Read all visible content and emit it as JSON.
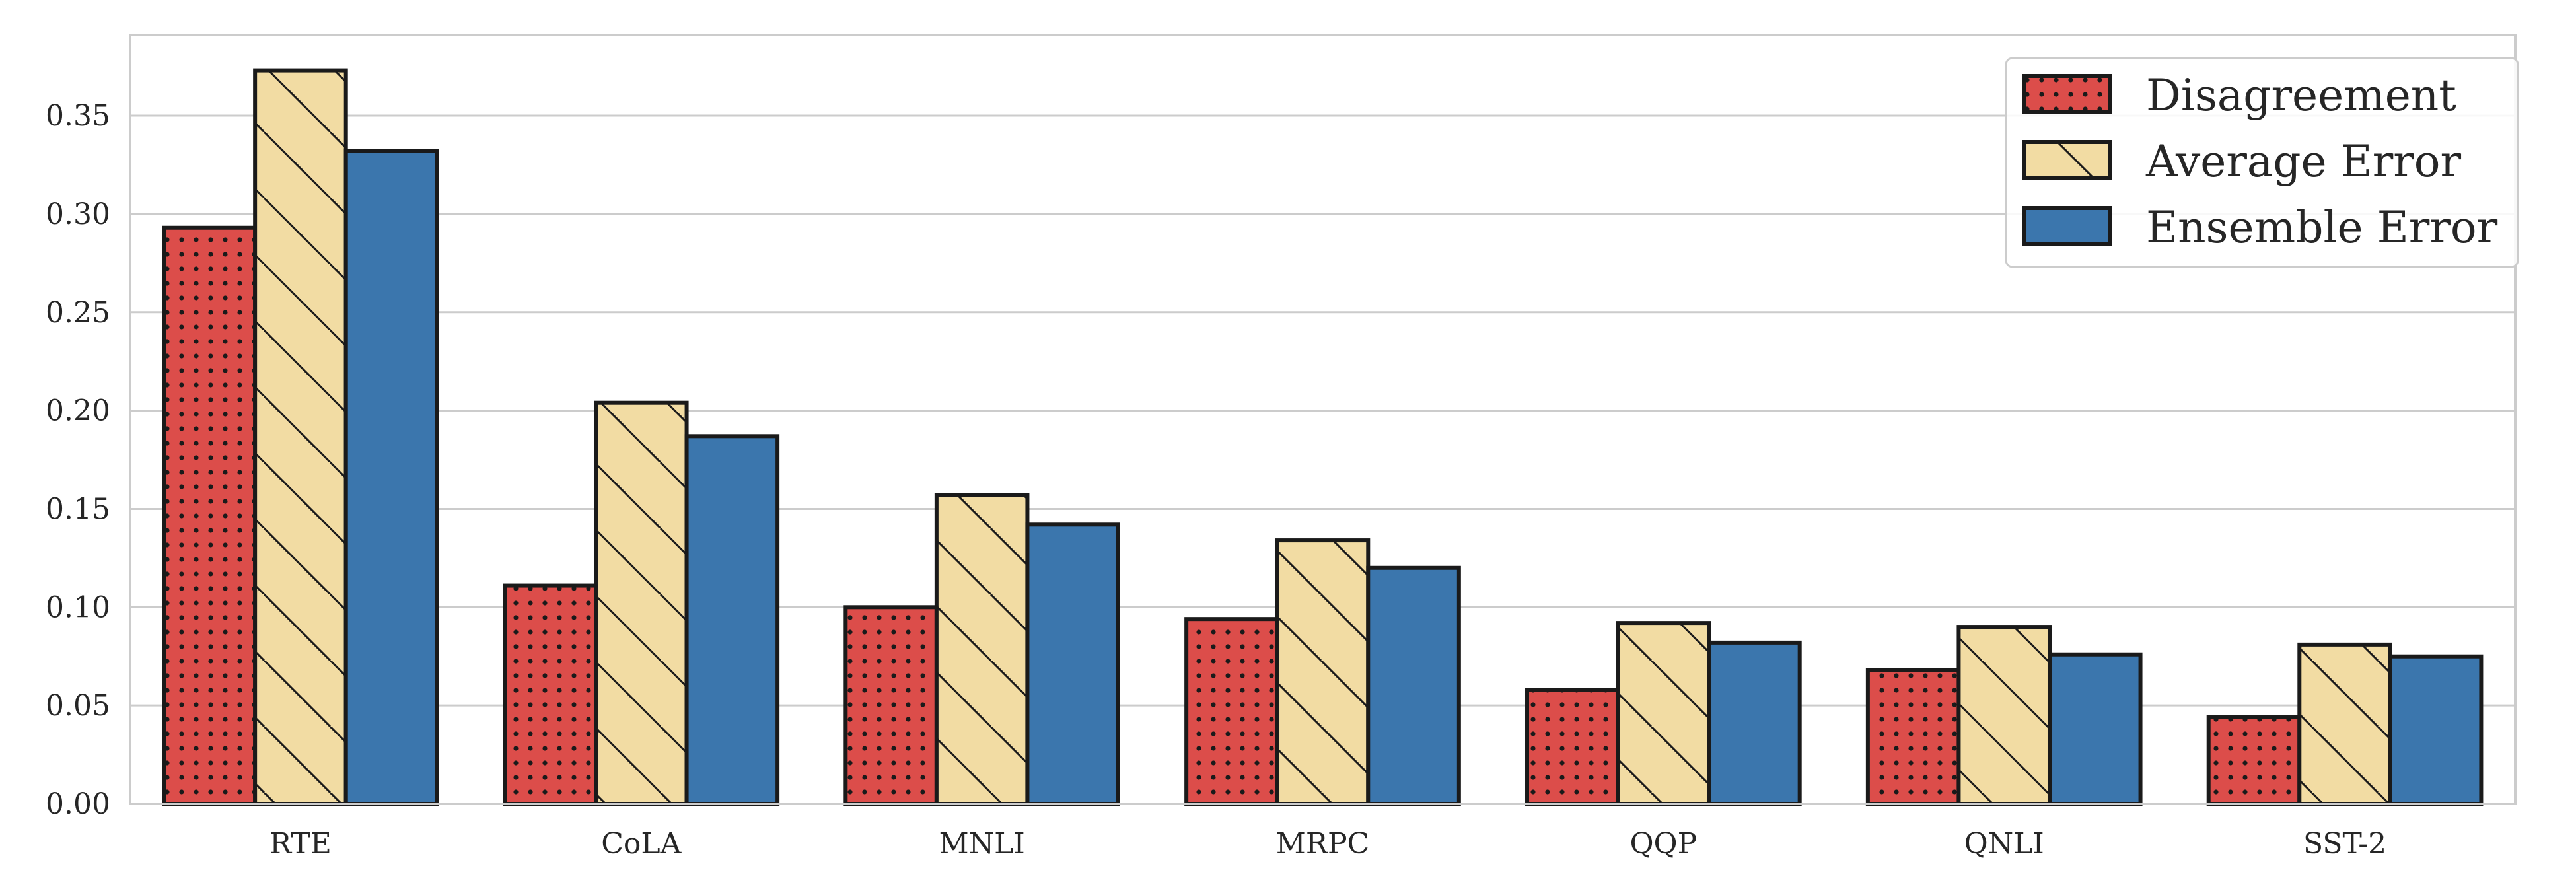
{
  "chart_data": {
    "type": "bar",
    "title": "",
    "xlabel": "",
    "ylabel": "",
    "categories": [
      "RTE",
      "CoLA",
      "MNLI",
      "MRPC",
      "QQP",
      "QNLI",
      "SST-2"
    ],
    "series": [
      {
        "name": "Disagreement",
        "values": [
          0.293,
          0.111,
          0.1,
          0.094,
          0.058,
          0.068,
          0.044
        ],
        "color": "#dc4d4a",
        "hatch": "dots"
      },
      {
        "name": "Average Error",
        "values": [
          0.373,
          0.204,
          0.157,
          0.134,
          0.092,
          0.09,
          0.081
        ],
        "color": "#f2dca3",
        "hatch": "diagonal"
      },
      {
        "name": "Ensemble Error",
        "values": [
          0.332,
          0.187,
          0.142,
          0.12,
          0.082,
          0.076,
          0.075
        ],
        "color": "#3b76ad",
        "hatch": "none"
      }
    ],
    "ylim": [
      0,
      0.391
    ],
    "yticks": [
      "0.00",
      "0.05",
      "0.10",
      "0.15",
      "0.20",
      "0.25",
      "0.30",
      "0.35"
    ],
    "grid": true,
    "legend_position": "top-right",
    "colors": {
      "grid": "#cccccc",
      "axes": "#cccccc",
      "edge": "#1a1a1a"
    }
  }
}
